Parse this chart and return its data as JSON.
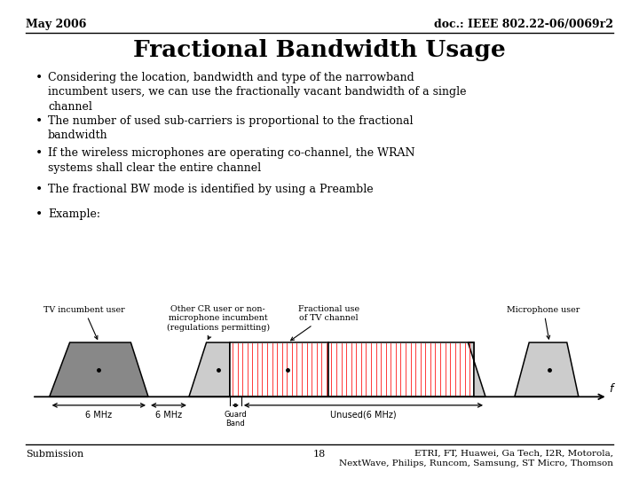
{
  "title": "Fractional Bandwidth Usage",
  "header_left": "May 2006",
  "header_right": "doc.: IEEE 802.22-06/0069r2",
  "bullets": [
    "Considering the location, bandwidth and type of the narrowband\nincumbent users, we can use the fractionally vacant bandwidth of a single\nchannel",
    "The number of used sub-carriers is proportional to the fractional\nbandwidth",
    "If the wireless microphones are operating co-channel, the WRAN\nsystems shall clear the entire channel",
    "The fractional BW mode is identified by using a Preamble",
    "Example:"
  ],
  "footer_left": "Submission",
  "footer_center": "18",
  "footer_right": "ETRI, FT, Huawei, Ga Tech, I2R, Motorola,\nNextWave, Philips, Runcom, Samsung, ST Micro, Thomson",
  "bg_color": "#ffffff",
  "text_color": "#000000",
  "diagram_labels": {
    "tv_incumbent": "TV incumbent user",
    "other_cr": "Other CR user or non-\nmicrophone incumbent\n(regulations permitting)",
    "fractional_use": "Fractional use\nof TV channel",
    "microphone_user": "Microphone user",
    "label_6mhz_1": "6 MHz",
    "label_6mhz_2": "6 MHz",
    "label_guard": "Guard\nBand",
    "label_unused": "Unused(6 MHz)"
  }
}
